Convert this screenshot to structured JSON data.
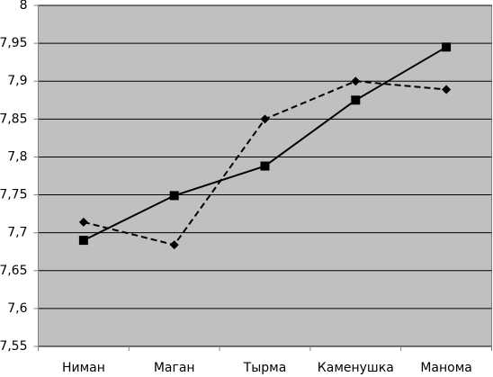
{
  "chart_data": {
    "type": "line",
    "categories": [
      "Ниман",
      "Маган",
      "Тырма",
      "Каменушка",
      "Манома"
    ],
    "series": [
      {
        "color": "#000000",
        "line_style": "solid",
        "marker": "square",
        "values": [
          7.69,
          7.749,
          7.788,
          7.875,
          7.945
        ]
      },
      {
        "color": "#000000",
        "line_style": "dashed",
        "marker": "diamond",
        "values": [
          7.714,
          7.684,
          7.85,
          7.9,
          7.889
        ]
      }
    ],
    "ylim": [
      7.55,
      8
    ],
    "yticks": [
      {
        "value": 7.55,
        "label": "7,55"
      },
      {
        "value": 7.6,
        "label": "7,6"
      },
      {
        "value": 7.65,
        "label": "7,65"
      },
      {
        "value": 7.7,
        "label": "7,7"
      },
      {
        "value": 7.75,
        "label": "7,75"
      },
      {
        "value": 7.8,
        "label": "7,8"
      },
      {
        "value": 7.85,
        "label": "7,85"
      },
      {
        "value": 7.9,
        "label": "7,9"
      },
      {
        "value": 7.95,
        "label": "7,95"
      },
      8
    ],
    "grid": true,
    "background": "#c0c0c0"
  }
}
